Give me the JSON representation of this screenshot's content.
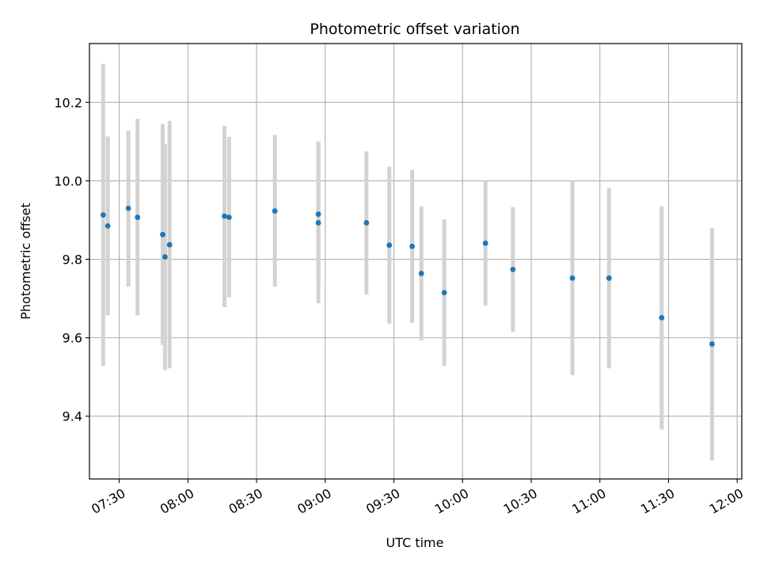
{
  "chart_data": {
    "type": "scatter",
    "title": "Photometric offset variation",
    "xlabel": "UTC time",
    "ylabel": "Photometric offset",
    "grid": true,
    "legend": "none",
    "x_ticks": [
      "07:30",
      "08:00",
      "08:30",
      "09:00",
      "09:30",
      "10:00",
      "10:30",
      "11:00",
      "11:30",
      "12:00"
    ],
    "y_ticks": [
      "9.4",
      "9.6",
      "9.8",
      "10.0",
      "10.2"
    ],
    "xlim": [
      "07:17",
      "12:02"
    ],
    "ylim": [
      9.24,
      10.35
    ],
    "colors": {
      "point": "#1f77b4",
      "errorbar": "#d3d3d3",
      "grid": "#b0b0b0"
    },
    "series": [
      {
        "points": [
          {
            "x": "07:23",
            "y": 9.913,
            "yerr_low": 9.528,
            "yerr_high": 10.298
          },
          {
            "x": "07:25",
            "y": 9.885,
            "yerr_low": 9.657,
            "yerr_high": 10.113
          },
          {
            "x": "07:34",
            "y": 9.93,
            "yerr_low": 9.73,
            "yerr_high": 10.128
          },
          {
            "x": "07:38",
            "y": 9.907,
            "yerr_low": 9.657,
            "yerr_high": 10.158
          },
          {
            "x": "07:49",
            "y": 9.863,
            "yerr_low": 9.582,
            "yerr_high": 10.145
          },
          {
            "x": "07:50",
            "y": 9.806,
            "yerr_low": 9.518,
            "yerr_high": 10.093
          },
          {
            "x": "07:52",
            "y": 9.837,
            "yerr_low": 9.522,
            "yerr_high": 10.153
          },
          {
            "x": "08:16",
            "y": 9.91,
            "yerr_low": 9.678,
            "yerr_high": 10.14
          },
          {
            "x": "08:18",
            "y": 9.907,
            "yerr_low": 9.703,
            "yerr_high": 10.112
          },
          {
            "x": "08:38",
            "y": 9.923,
            "yerr_low": 9.73,
            "yerr_high": 10.117
          },
          {
            "x": "08:57",
            "y": 9.915,
            "yerr_low": 9.73,
            "yerr_high": 10.1
          },
          {
            "x": "08:57",
            "y": 9.893,
            "yerr_low": 9.688,
            "yerr_high": 10.098
          },
          {
            "x": "09:18",
            "y": 9.893,
            "yerr_low": 9.71,
            "yerr_high": 10.075
          },
          {
            "x": "09:28",
            "y": 9.836,
            "yerr_low": 9.636,
            "yerr_high": 10.036
          },
          {
            "x": "09:38",
            "y": 9.833,
            "yerr_low": 9.638,
            "yerr_high": 10.028
          },
          {
            "x": "09:42",
            "y": 9.764,
            "yerr_low": 9.593,
            "yerr_high": 9.935
          },
          {
            "x": "09:52",
            "y": 9.715,
            "yerr_low": 9.528,
            "yerr_high": 9.902
          },
          {
            "x": "10:10",
            "y": 9.841,
            "yerr_low": 9.682,
            "yerr_high": 10.0
          },
          {
            "x": "10:22",
            "y": 9.774,
            "yerr_low": 9.615,
            "yerr_high": 9.933
          },
          {
            "x": "10:48",
            "y": 9.752,
            "yerr_low": 9.505,
            "yerr_high": 10.0
          },
          {
            "x": "11:04",
            "y": 9.752,
            "yerr_low": 9.522,
            "yerr_high": 9.982
          },
          {
            "x": "11:27",
            "y": 9.651,
            "yerr_low": 9.366,
            "yerr_high": 9.935
          },
          {
            "x": "11:49",
            "y": 9.584,
            "yerr_low": 9.287,
            "yerr_high": 9.88
          }
        ]
      }
    ]
  }
}
